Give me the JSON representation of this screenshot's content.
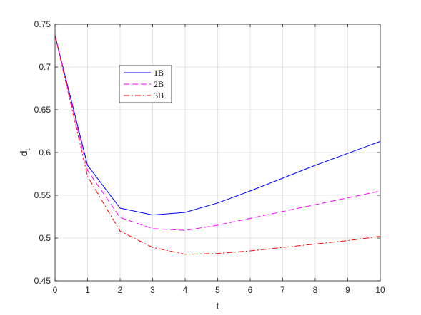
{
  "chart_data": {
    "type": "line",
    "xlabel": "t",
    "ylabel": {
      "main": "d",
      "sub": "t"
    },
    "xlim": [
      0,
      10
    ],
    "ylim": [
      0.45,
      0.75
    ],
    "xticks": [
      "0",
      "1",
      "2",
      "3",
      "4",
      "5",
      "6",
      "7",
      "8",
      "9",
      "10"
    ],
    "yticks": [
      "0.45",
      "0.5",
      "0.55",
      "0.6",
      "0.65",
      "0.7",
      "0.75"
    ],
    "grid": true,
    "legend_position": "upper-left",
    "x": [
      0,
      1,
      2,
      3,
      4,
      5,
      6,
      7,
      8,
      9,
      10
    ],
    "series": [
      {
        "name": "1B",
        "color": "#0000ff",
        "style": "solid",
        "values": [
          0.737,
          0.585,
          0.535,
          0.527,
          0.53,
          0.541,
          0.555,
          0.57,
          0.585,
          0.599,
          0.613
        ]
      },
      {
        "name": "2B",
        "color": "#ff00ff",
        "style": "dashed",
        "values": [
          0.737,
          0.579,
          0.524,
          0.511,
          0.509,
          0.515,
          0.523,
          0.531,
          0.539,
          0.547,
          0.555
        ]
      },
      {
        "name": "3B",
        "color": "#ff0000",
        "style": "dashdot",
        "values": [
          0.737,
          0.572,
          0.508,
          0.489,
          0.481,
          0.482,
          0.485,
          0.489,
          0.493,
          0.497,
          0.502
        ]
      }
    ]
  }
}
